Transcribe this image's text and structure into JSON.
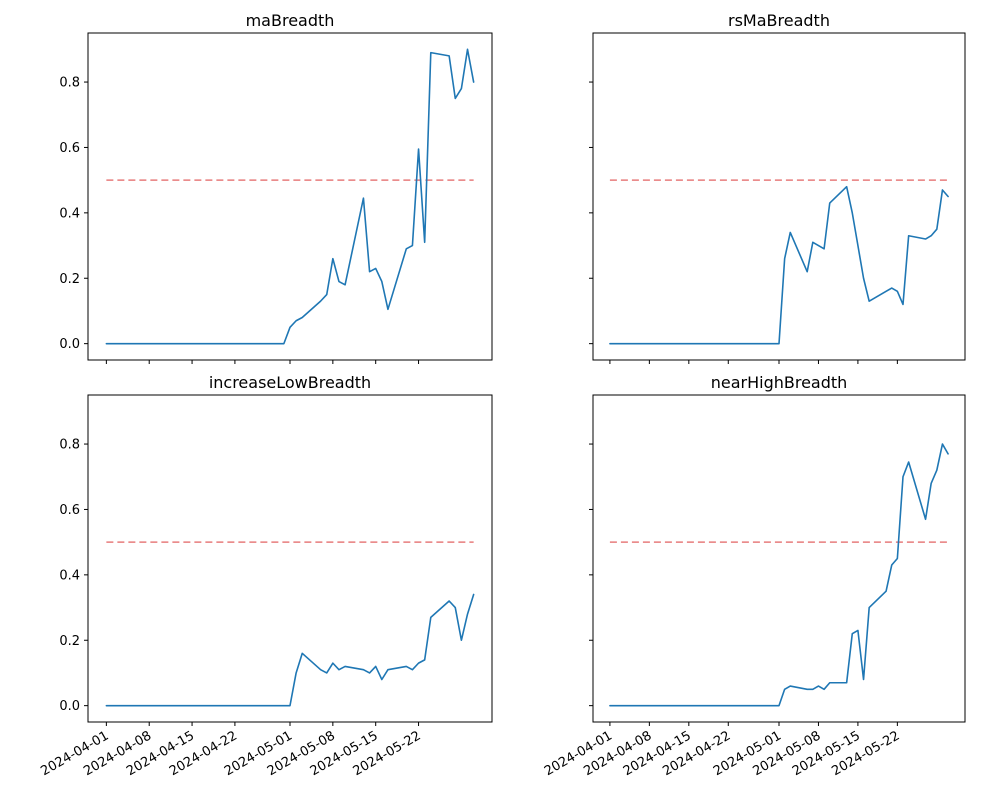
{
  "figure": {
    "background": "#ffffff"
  },
  "colors": {
    "series_line": "#1f77b4",
    "threshold_line": "#e87c7c",
    "axis": "#000000"
  },
  "dates": [
    "2024-04-01",
    "2024-04-02",
    "2024-04-03",
    "2024-04-04",
    "2024-04-05",
    "2024-04-08",
    "2024-04-09",
    "2024-04-10",
    "2024-04-11",
    "2024-04-12",
    "2024-04-15",
    "2024-04-16",
    "2024-04-17",
    "2024-04-18",
    "2024-04-19",
    "2024-04-22",
    "2024-04-23",
    "2024-04-24",
    "2024-04-25",
    "2024-04-26",
    "2024-04-29",
    "2024-04-30",
    "2024-05-01",
    "2024-05-02",
    "2024-05-03",
    "2024-05-06",
    "2024-05-07",
    "2024-05-08",
    "2024-05-09",
    "2024-05-10",
    "2024-05-13",
    "2024-05-14",
    "2024-05-15",
    "2024-05-16",
    "2024-05-17",
    "2024-05-20",
    "2024-05-21",
    "2024-05-22",
    "2024-05-23",
    "2024-05-24",
    "2024-05-27",
    "2024-05-28",
    "2024-05-29",
    "2024-05-30",
    "2024-05-31"
  ],
  "x_tick_labels": [
    "2024-04-01",
    "2024-04-08",
    "2024-04-15",
    "2024-04-22",
    "2024-05-01",
    "2024-05-08",
    "2024-05-15",
    "2024-05-22"
  ],
  "chart_data": [
    {
      "type": "line",
      "title": "maBreadth",
      "threshold": 0.5,
      "ylim": [
        -0.05,
        0.95
      ],
      "y_ticks": [
        0.0,
        0.2,
        0.4,
        0.6,
        0.8
      ],
      "show_y_labels": true,
      "show_x_labels": false,
      "values": [
        0,
        0,
        0,
        0,
        0,
        0,
        0,
        0,
        0,
        0,
        0,
        0,
        0,
        0,
        0,
        0,
        0,
        0,
        0,
        0,
        0,
        0,
        0.05,
        0.07,
        0.08,
        0.13,
        0.15,
        0.26,
        0.19,
        0.18,
        0.445,
        0.22,
        0.23,
        0.19,
        0.105,
        0.29,
        0.3,
        0.595,
        0.31,
        0.89,
        0.88,
        0.75,
        0.78,
        0.9,
        0.8
      ]
    },
    {
      "type": "line",
      "title": "rsMaBreadth",
      "threshold": 0.5,
      "ylim": [
        -0.05,
        0.95
      ],
      "y_ticks": [
        0.0,
        0.2,
        0.4,
        0.6,
        0.8
      ],
      "show_y_labels": false,
      "show_x_labels": false,
      "values": [
        0,
        0,
        0,
        0,
        0,
        0,
        0,
        0,
        0,
        0,
        0,
        0,
        0,
        0,
        0,
        0,
        0,
        0,
        0,
        0,
        0,
        0,
        0,
        0.26,
        0.34,
        0.22,
        0.31,
        0.3,
        0.29,
        0.43,
        0.48,
        0.4,
        0.3,
        0.2,
        0.13,
        0.16,
        0.17,
        0.16,
        0.12,
        0.33,
        0.32,
        0.33,
        0.35,
        0.47,
        0.45
      ]
    },
    {
      "type": "line",
      "title": "increaseLowBreadth",
      "threshold": 0.5,
      "ylim": [
        -0.05,
        0.95
      ],
      "y_ticks": [
        0.0,
        0.2,
        0.4,
        0.6,
        0.8
      ],
      "show_y_labels": true,
      "show_x_labels": true,
      "values": [
        0,
        0,
        0,
        0,
        0,
        0,
        0,
        0,
        0,
        0,
        0,
        0,
        0,
        0,
        0,
        0,
        0,
        0,
        0,
        0,
        0,
        0,
        0,
        0.1,
        0.16,
        0.11,
        0.1,
        0.13,
        0.11,
        0.12,
        0.11,
        0.1,
        0.12,
        0.08,
        0.11,
        0.12,
        0.11,
        0.13,
        0.14,
        0.27,
        0.32,
        0.3,
        0.2,
        0.28,
        0.34
      ]
    },
    {
      "type": "line",
      "title": "nearHighBreadth",
      "threshold": 0.5,
      "ylim": [
        -0.05,
        0.95
      ],
      "y_ticks": [
        0.0,
        0.2,
        0.4,
        0.6,
        0.8
      ],
      "show_y_labels": false,
      "show_x_labels": true,
      "values": [
        0,
        0,
        0,
        0,
        0,
        0,
        0,
        0,
        0,
        0,
        0,
        0,
        0,
        0,
        0,
        0,
        0,
        0,
        0,
        0,
        0,
        0,
        0,
        0.05,
        0.06,
        0.05,
        0.05,
        0.06,
        0.05,
        0.07,
        0.07,
        0.22,
        0.23,
        0.08,
        0.3,
        0.35,
        0.43,
        0.45,
        0.7,
        0.745,
        0.57,
        0.68,
        0.72,
        0.8,
        0.77
      ]
    }
  ]
}
